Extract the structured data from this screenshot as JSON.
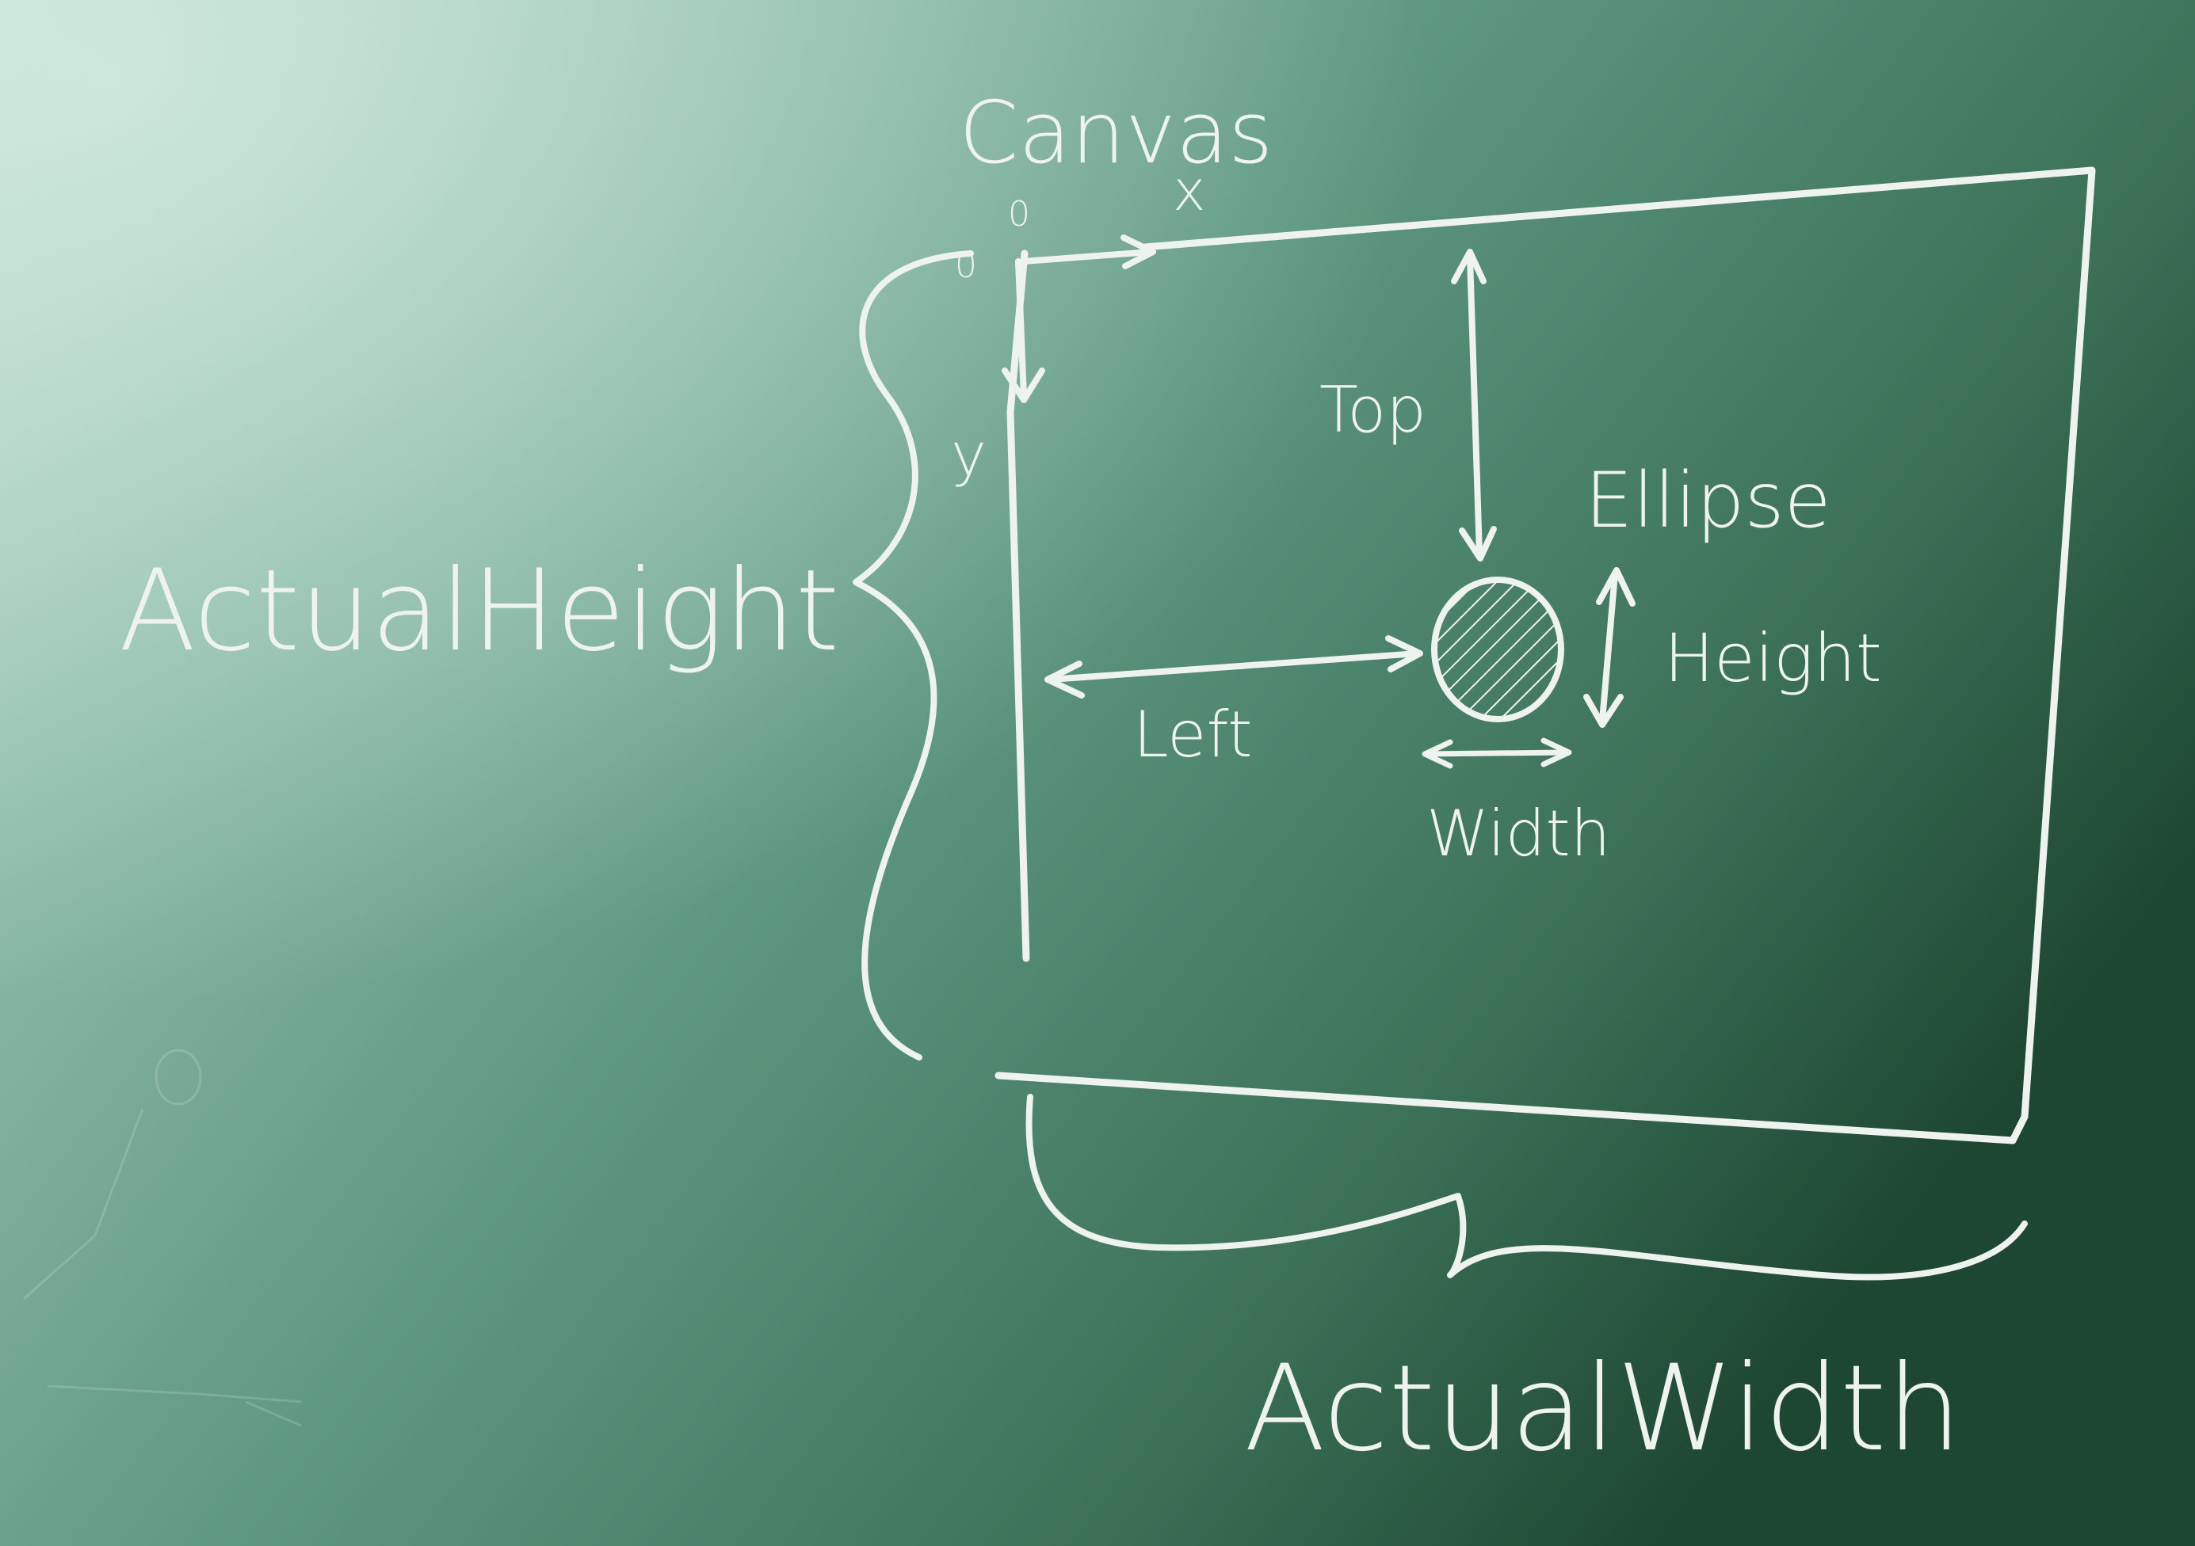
{
  "labels": {
    "canvas": "Canvas",
    "origin_x": "0",
    "origin_y": "0",
    "x_axis": "x",
    "y_axis": "y",
    "top": "Top",
    "left": "Left",
    "ellipse": "Ellipse",
    "height": "Height",
    "width": "Width",
    "actual_height": "ActualHeight",
    "actual_width": "ActualWidth"
  },
  "colors": {
    "board_light": "#b3d5c6",
    "board_mid": "#6a9f8b",
    "board_dark": "#1f4a37",
    "chalk": "#eef3ef"
  }
}
